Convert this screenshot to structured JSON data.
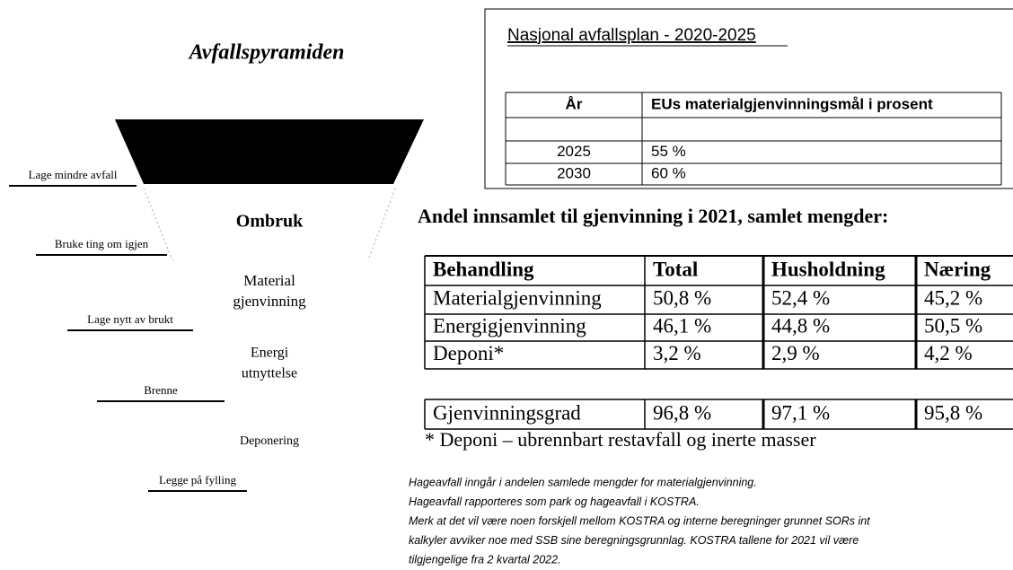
{
  "pyramid": {
    "title": "Avfallspyramiden",
    "levels": [
      [
        "Ombruk"
      ],
      [
        "Material",
        "gjenvinning"
      ],
      [
        "Energi",
        "utnyttelse"
      ],
      [
        "Deponering"
      ]
    ],
    "actions": [
      "Lage mindre avfall",
      "Bruke ting om igjen",
      "Lage nytt av brukt",
      "Brenne",
      "Legge på fylling"
    ]
  },
  "plan": {
    "title": "Nasjonal avfallsplan - 2020-2025",
    "header": [
      "År",
      "EUs materialgjenvinningsmål i prosent"
    ],
    "rows": [
      [
        "",
        ""
      ],
      [
        "2025",
        "55 %"
      ],
      [
        "2030",
        "60 %"
      ]
    ]
  },
  "collection": {
    "title": "Andel innsamlet til gjenvinning i 2021, samlet mengder:",
    "header": [
      "Behandling",
      "Total",
      "Husholdning",
      "Næring"
    ],
    "rows": [
      [
        "Materialgjenvinning",
        "50,8 %",
        "52,4 %",
        "45,2 %"
      ],
      [
        "Energigjenvinning",
        "46,1 %",
        "44,8 %",
        "50,5 %"
      ],
      [
        "Deponi*",
        "3,2 %",
        "2,9 %",
        "4,2 %"
      ]
    ],
    "total": [
      "Gjenvinningsgrad",
      "96,8 %",
      "97,1 %",
      "95,8 %"
    ],
    "footnote": "* Deponi – ubrennbart restavfall og inerte masser"
  },
  "notes": [
    "Hageavfall inngår i andelen samlede mengder for materialgjenvinning.",
    "Hageavfall rapporteres som park og hageavfall i KOSTRA.",
    "Merk at det vil være noen forskjell mellom KOSTRA og interne beregninger grunnet SORs int",
    "kalkyler avviker noe med SSB sine beregningsgrunnlag. KOSTRA tallene for 2021 vil være",
    "tilgjengelige fra 2 kvartal 2022."
  ]
}
